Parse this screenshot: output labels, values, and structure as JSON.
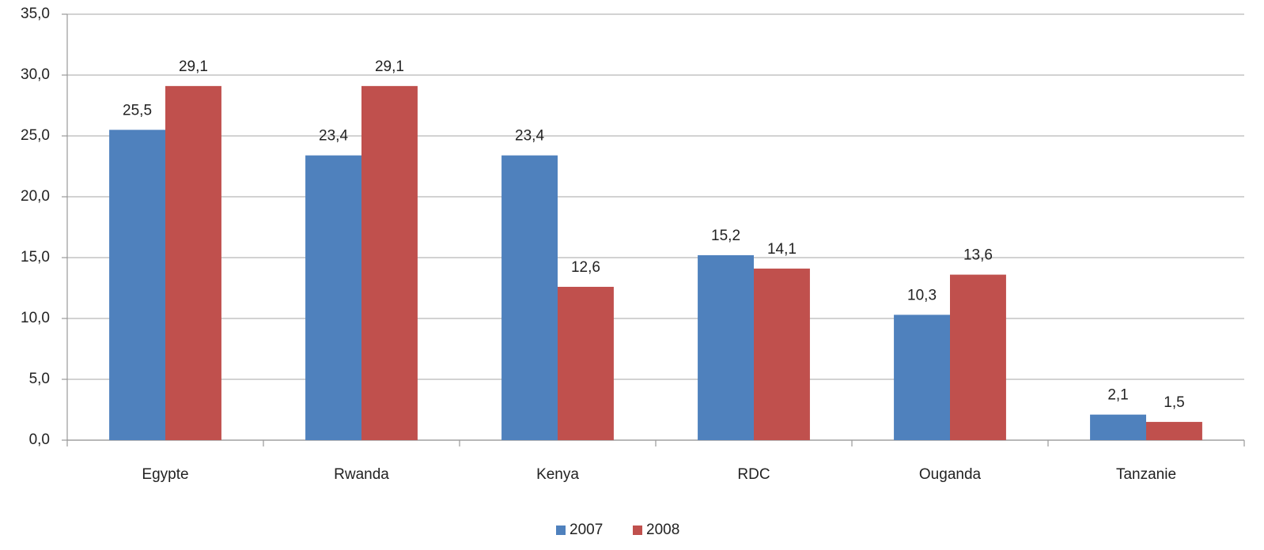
{
  "chart_data": {
    "type": "bar",
    "categories": [
      "Egypte",
      "Rwanda",
      "Kenya",
      "RDC",
      "Ouganda",
      "Tanzanie"
    ],
    "series": [
      {
        "name": "2007",
        "color": "#4f81bd",
        "values": [
          25.5,
          23.4,
          23.4,
          15.2,
          10.3,
          2.1
        ],
        "value_labels": [
          "25,5",
          "23,4",
          "23,4",
          "15,2",
          "10,3",
          "2,1"
        ]
      },
      {
        "name": "2008",
        "color": "#c0504d",
        "values": [
          29.1,
          29.1,
          12.6,
          14.1,
          13.6,
          1.5
        ],
        "value_labels": [
          "29,1",
          "29,1",
          "12,6",
          "14,1",
          "13,6",
          "1,5"
        ]
      }
    ],
    "ylim": [
      0,
      35
    ],
    "yticks": [
      {
        "value": 0,
        "label": "0,0"
      },
      {
        "value": 5,
        "label": "5,0"
      },
      {
        "value": 10,
        "label": "10,0"
      },
      {
        "value": 15,
        "label": "15,0"
      },
      {
        "value": 20,
        "label": "20,0"
      },
      {
        "value": 25,
        "label": "25,0"
      },
      {
        "value": 30,
        "label": "30,0"
      },
      {
        "value": 35,
        "label": "35,0"
      }
    ],
    "grid": true,
    "legend": "bottom"
  }
}
